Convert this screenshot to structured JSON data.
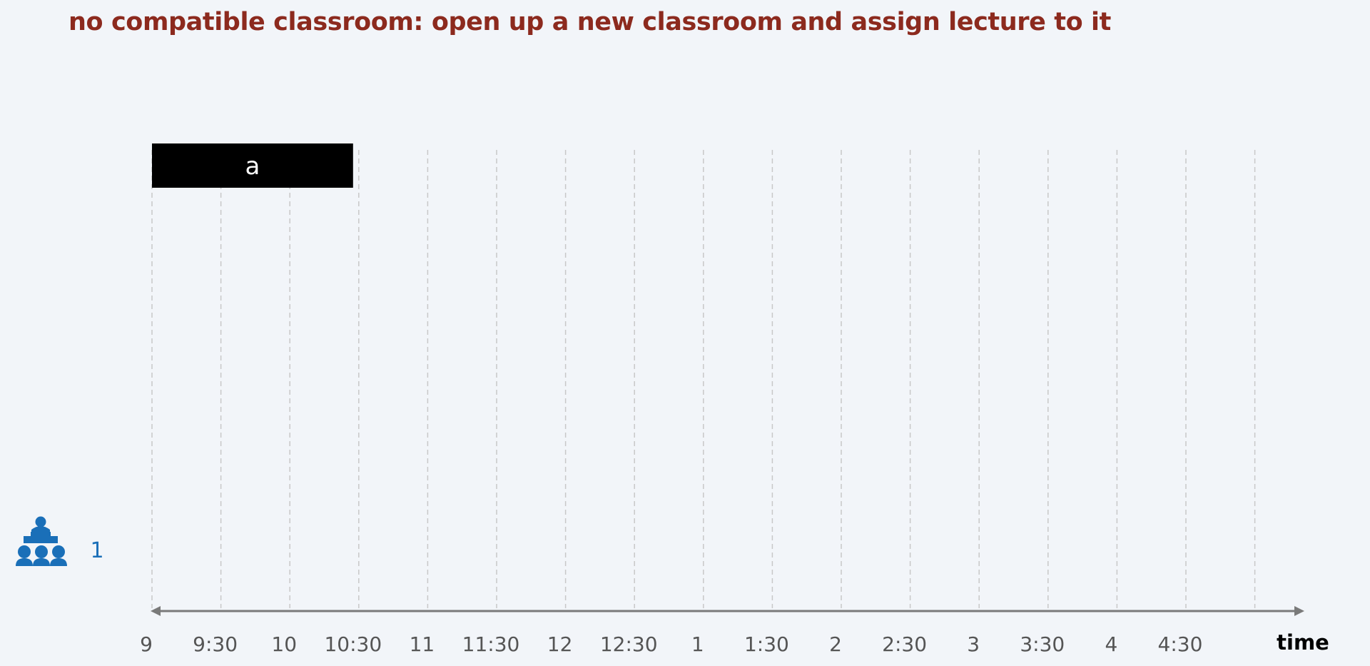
{
  "title": "no compatible classroom: open up a new classroom and assign lecture to it",
  "colors": {
    "title": "#8c2a1e",
    "icon": "#1a6fb8",
    "room_label": "#1a6fb8",
    "lecture_fill": "#000000",
    "lecture_text": "#ffffff",
    "axis": "#7a7a7a",
    "grid": "#c8c8c8"
  },
  "axis": {
    "label": "time",
    "ticks": [
      "9",
      "9:30",
      "10",
      "10:30",
      "11",
      "11:30",
      "12",
      "12:30",
      "1",
      "1:30",
      "2",
      "2:30",
      "3",
      "3:30",
      "4",
      "4:30"
    ]
  },
  "classrooms": [
    {
      "label": "1",
      "icon": "lecture-hall-icon"
    }
  ],
  "lectures": [
    {
      "label": "a",
      "start": "9",
      "end": "10:30"
    }
  ]
}
